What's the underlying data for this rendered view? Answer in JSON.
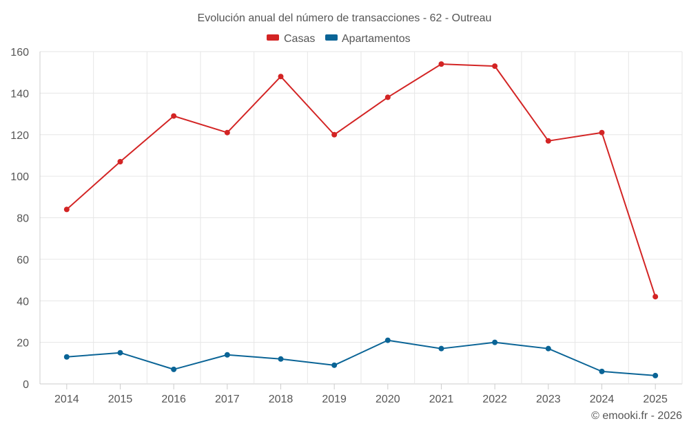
{
  "chart_data": {
    "type": "line",
    "title": "Evolución anual del número de transacciones - 62 - Outreau",
    "categories": [
      "2014",
      "2015",
      "2016",
      "2017",
      "2018",
      "2019",
      "2020",
      "2021",
      "2022",
      "2023",
      "2024",
      "2025"
    ],
    "series": [
      {
        "name": "Casas",
        "color": "#d32424",
        "values": [
          84,
          107,
          129,
          121,
          148,
          120,
          138,
          154,
          153,
          117,
          121,
          42
        ]
      },
      {
        "name": "Apartamentos",
        "color": "#0a6496",
        "values": [
          13,
          15,
          7,
          14,
          12,
          9,
          21,
          17,
          20,
          17,
          6,
          4
        ]
      }
    ],
    "ylim": [
      0,
      160
    ],
    "yticks": [
      0,
      20,
      40,
      60,
      80,
      100,
      120,
      140,
      160
    ],
    "xlabel": "",
    "ylabel": "",
    "grid": true,
    "legend_position": "top-center"
  },
  "credit": "© emooki.fr - 2026"
}
